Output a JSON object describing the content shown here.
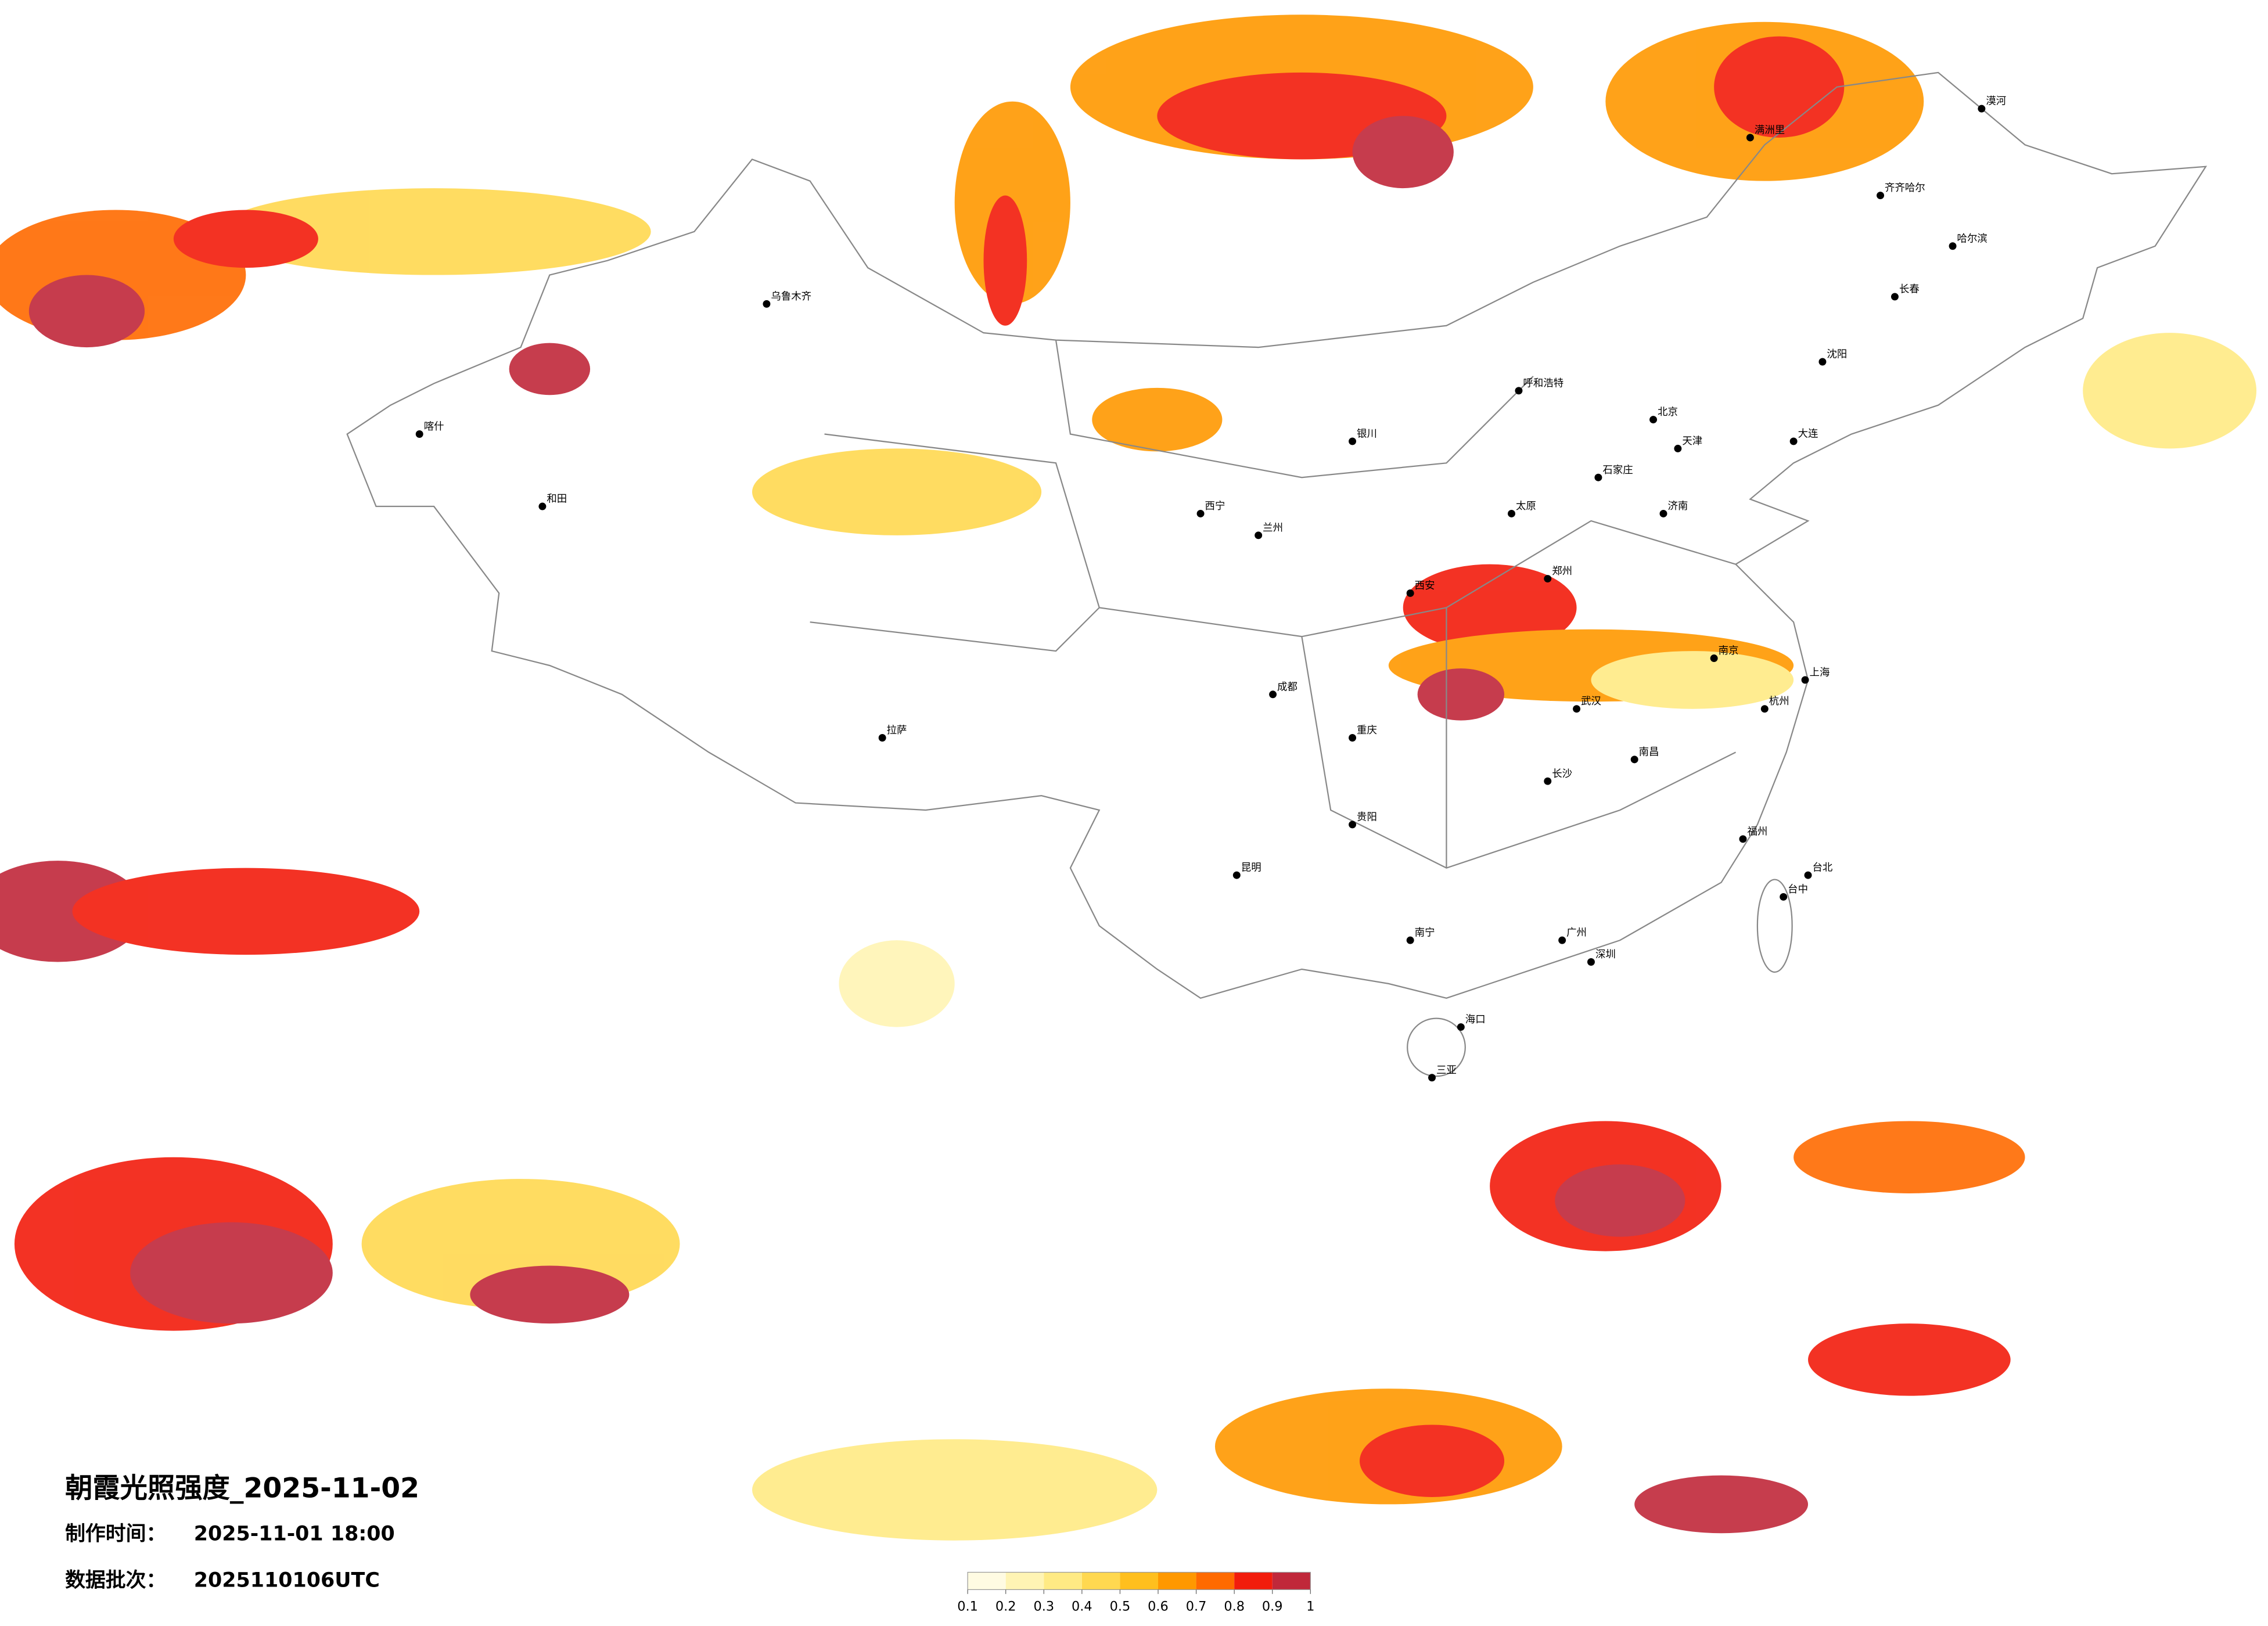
{
  "title": "朝霞光照强度_2025-11-02",
  "made_time": {
    "label": "制作时间：",
    "value": "2025-11-01 18:00"
  },
  "batch": {
    "label": "数据批次：",
    "value": "2025110106UTC"
  },
  "legend": {
    "ticks": [
      0.1,
      0.2,
      0.3,
      0.4,
      0.5,
      0.6,
      0.7,
      0.8,
      0.9,
      1
    ],
    "colors": [
      "#fffbe2",
      "#fff4b4",
      "#ffea84",
      "#ffd850",
      "#ffbf1e",
      "#ff9800",
      "#ff6a00",
      "#f21c0c",
      "#c0283a"
    ]
  },
  "cities": [
    "北京",
    "天津",
    "上海",
    "广州",
    "深圳",
    "重庆",
    "成都",
    "武汉",
    "西安",
    "郑州",
    "济南",
    "南京",
    "杭州",
    "长沙",
    "南昌",
    "福州",
    "昆明",
    "贵阳",
    "南宁",
    "海口",
    "兰州",
    "西宁",
    "银川",
    "呼和浩特",
    "太原",
    "石家庄",
    "沈阳",
    "长春",
    "哈尔滨",
    "乌鲁木齐",
    "拉萨",
    "和田",
    "喀什",
    "台北",
    "台中",
    "大连",
    "三亚",
    "漠河",
    "满洲里",
    "齐齐哈尔"
  ]
}
